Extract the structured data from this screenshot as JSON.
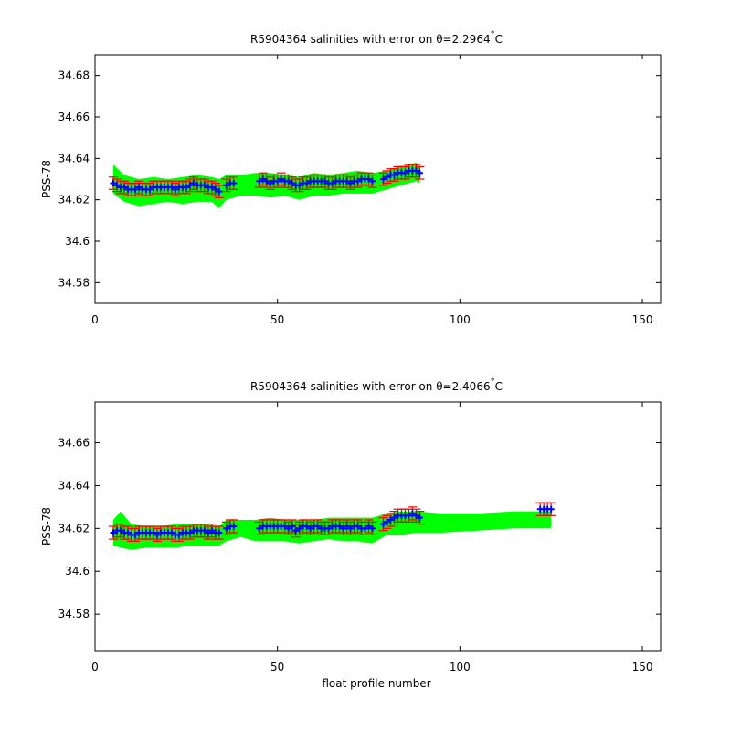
{
  "chart_data": [
    {
      "type": "scatter",
      "title_prefix": "R5904364 salinities with error on θ=2.2964",
      "title_degree": "°",
      "title_unit": "C",
      "ylabel": "PSS-78",
      "xlabel": "",
      "xlim": [
        0,
        155
      ],
      "ylim": [
        34.57,
        34.69
      ],
      "xticks": [
        0,
        50,
        100,
        150
      ],
      "yticks": [
        34.58,
        34.6,
        34.62,
        34.64,
        34.66,
        34.68
      ],
      "ytick_labels": [
        "34.58",
        "34.6",
        "34.62",
        "34.64",
        "34.66",
        "34.68"
      ],
      "grid": false,
      "colors": {
        "band": "#00ff00",
        "errorbar": "#ff0000",
        "marker": "#0000ff"
      },
      "band": {
        "x": [
          5,
          8,
          12,
          16,
          20,
          24,
          28,
          32,
          34,
          36,
          40,
          44,
          48,
          52,
          56,
          60,
          64,
          68,
          72,
          76,
          80,
          84,
          88,
          89
        ],
        "upper": [
          34.637,
          34.632,
          34.63,
          34.631,
          34.63,
          34.631,
          34.632,
          34.631,
          34.63,
          34.632,
          34.632,
          34.633,
          34.633,
          34.632,
          34.631,
          34.633,
          34.632,
          34.633,
          34.634,
          34.633,
          34.634,
          34.636,
          34.638,
          34.636
        ],
        "lower": [
          34.623,
          34.619,
          34.617,
          34.618,
          34.619,
          34.618,
          34.619,
          34.619,
          34.616,
          34.62,
          34.622,
          34.622,
          34.621,
          34.622,
          34.62,
          34.622,
          34.622,
          34.623,
          34.623,
          34.623,
          34.625,
          34.627,
          34.629,
          34.628
        ]
      },
      "err": 0.003,
      "points": {
        "x": [
          5,
          6,
          7,
          8,
          9,
          10,
          11,
          12,
          13,
          14,
          15,
          16,
          17,
          18,
          19,
          20,
          21,
          22,
          23,
          24,
          25,
          26,
          27,
          28,
          29,
          30,
          31,
          32,
          33,
          34,
          36,
          37,
          38,
          45,
          46,
          47,
          48,
          49,
          50,
          51,
          52,
          53,
          54,
          55,
          56,
          57,
          58,
          59,
          60,
          61,
          62,
          63,
          64,
          65,
          66,
          67,
          68,
          69,
          70,
          71,
          72,
          73,
          74,
          75,
          76,
          79,
          80,
          81,
          82,
          83,
          84,
          85,
          86,
          87,
          88,
          89
        ],
        "y": [
          34.628,
          34.627,
          34.626,
          34.626,
          34.625,
          34.625,
          34.625,
          34.626,
          34.625,
          34.625,
          34.625,
          34.626,
          34.626,
          34.626,
          34.626,
          34.626,
          34.626,
          34.625,
          34.626,
          34.626,
          34.626,
          34.627,
          34.628,
          34.627,
          34.627,
          34.627,
          34.626,
          34.626,
          34.625,
          34.624,
          34.627,
          34.628,
          34.628,
          34.629,
          34.63,
          34.629,
          34.628,
          34.629,
          34.629,
          34.63,
          34.629,
          34.629,
          34.628,
          34.627,
          34.627,
          34.628,
          34.628,
          34.629,
          34.629,
          34.629,
          34.629,
          34.629,
          34.628,
          34.628,
          34.629,
          34.629,
          34.629,
          34.629,
          34.628,
          34.629,
          34.629,
          34.63,
          34.63,
          34.63,
          34.629,
          34.63,
          34.631,
          34.632,
          34.632,
          34.633,
          34.633,
          34.633,
          34.634,
          34.634,
          34.634,
          34.633
        ]
      }
    },
    {
      "type": "scatter",
      "title_prefix": "R5904364 salinities with error on θ=2.4066",
      "title_degree": "°",
      "title_unit": "C",
      "ylabel": "PSS-78",
      "xlabel": "float profile number",
      "xlim": [
        0,
        155
      ],
      "ylim": [
        34.563,
        34.679
      ],
      "xticks": [
        0,
        50,
        100,
        150
      ],
      "yticks": [
        34.58,
        34.6,
        34.62,
        34.64,
        34.66
      ],
      "ytick_labels": [
        "34.58",
        "34.6",
        "34.62",
        "34.64",
        "34.66"
      ],
      "grid": false,
      "colors": {
        "band": "#00ff00",
        "errorbar": "#ff0000",
        "marker": "#0000ff"
      },
      "band": {
        "x": [
          5,
          7,
          10,
          14,
          18,
          22,
          26,
          30,
          34,
          36,
          40,
          44,
          48,
          52,
          56,
          60,
          64,
          68,
          72,
          76,
          80,
          84,
          88,
          95,
          105,
          115,
          125
        ],
        "upper": [
          34.624,
          34.628,
          34.622,
          34.621,
          34.621,
          34.622,
          34.622,
          34.622,
          34.621,
          34.624,
          34.624,
          34.624,
          34.625,
          34.624,
          34.624,
          34.624,
          34.625,
          34.625,
          34.625,
          34.625,
          34.627,
          34.628,
          34.628,
          34.627,
          34.627,
          34.628,
          34.628
        ],
        "lower": [
          34.612,
          34.611,
          34.61,
          34.611,
          34.611,
          34.611,
          34.612,
          34.612,
          34.612,
          34.614,
          34.616,
          34.614,
          34.614,
          34.614,
          34.613,
          34.614,
          34.615,
          34.614,
          34.614,
          34.613,
          34.617,
          34.617,
          34.618,
          34.618,
          34.619,
          34.62,
          34.62
        ]
      },
      "err": 0.003,
      "points": {
        "x": [
          5,
          6,
          7,
          8,
          9,
          10,
          11,
          12,
          13,
          14,
          15,
          16,
          17,
          18,
          19,
          20,
          21,
          22,
          23,
          24,
          25,
          26,
          27,
          28,
          29,
          30,
          31,
          32,
          33,
          34,
          36,
          37,
          38,
          45,
          46,
          47,
          48,
          49,
          50,
          51,
          52,
          53,
          54,
          55,
          56,
          57,
          58,
          59,
          60,
          61,
          62,
          63,
          64,
          65,
          66,
          67,
          68,
          69,
          70,
          71,
          72,
          73,
          74,
          75,
          76,
          79,
          80,
          81,
          82,
          83,
          84,
          85,
          86,
          87,
          88,
          89,
          122,
          123,
          124,
          125
        ],
        "y": [
          34.618,
          34.619,
          34.619,
          34.618,
          34.618,
          34.617,
          34.617,
          34.618,
          34.618,
          34.618,
          34.618,
          34.618,
          34.617,
          34.618,
          34.618,
          34.618,
          34.618,
          34.617,
          34.617,
          34.618,
          34.618,
          34.618,
          34.619,
          34.619,
          34.619,
          34.619,
          34.618,
          34.619,
          34.618,
          34.618,
          34.62,
          34.621,
          34.621,
          34.62,
          34.621,
          34.621,
          34.621,
          34.621,
          34.621,
          34.621,
          34.621,
          34.62,
          34.621,
          34.619,
          34.62,
          34.621,
          34.621,
          34.62,
          34.621,
          34.621,
          34.62,
          34.62,
          34.62,
          34.621,
          34.621,
          34.621,
          34.62,
          34.621,
          34.62,
          34.621,
          34.621,
          34.62,
          34.62,
          34.621,
          34.62,
          34.622,
          34.623,
          34.624,
          34.625,
          34.626,
          34.626,
          34.626,
          34.626,
          34.627,
          34.626,
          34.625,
          34.629,
          34.629,
          34.629,
          34.629
        ]
      }
    }
  ]
}
